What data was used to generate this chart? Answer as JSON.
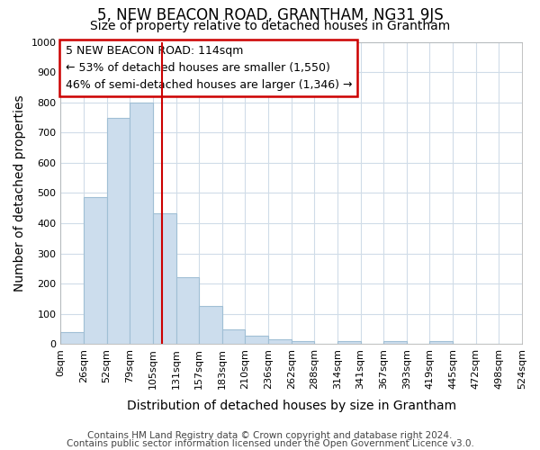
{
  "title": "5, NEW BEACON ROAD, GRANTHAM, NG31 9JS",
  "subtitle": "Size of property relative to detached houses in Grantham",
  "xlabel": "Distribution of detached houses by size in Grantham",
  "ylabel": "Number of detached properties",
  "bar_color": "#ccdded",
  "bar_edge_color": "#a0bfd5",
  "background_color": "#ffffff",
  "fig_background_color": "#ffffff",
  "grid_color": "#d0dce8",
  "bin_labels": [
    "0sqm",
    "26sqm",
    "52sqm",
    "79sqm",
    "105sqm",
    "131sqm",
    "157sqm",
    "183sqm",
    "210sqm",
    "236sqm",
    "262sqm",
    "288sqm",
    "314sqm",
    "341sqm",
    "367sqm",
    "393sqm",
    "419sqm",
    "445sqm",
    "472sqm",
    "498sqm",
    "524sqm"
  ],
  "bar_heights": [
    40,
    485,
    748,
    800,
    432,
    222,
    127,
    48,
    27,
    15,
    10,
    0,
    9,
    0,
    10,
    0,
    9,
    0,
    0,
    0
  ],
  "red_line_x": 114,
  "bin_width": 26,
  "ylim": [
    0,
    1000
  ],
  "annotation_title": "5 NEW BEACON ROAD: 114sqm",
  "annotation_line1": "← 53% of detached houses are smaller (1,550)",
  "annotation_line2": "46% of semi-detached houses are larger (1,346) →",
  "annotation_box_color": "white",
  "annotation_box_edge_color": "#cc0000",
  "footer1": "Contains HM Land Registry data © Crown copyright and database right 2024.",
  "footer2": "Contains public sector information licensed under the Open Government Licence v3.0.",
  "title_fontsize": 12,
  "subtitle_fontsize": 10,
  "axis_label_fontsize": 10,
  "tick_fontsize": 8,
  "annotation_fontsize": 9,
  "footer_fontsize": 7.5
}
